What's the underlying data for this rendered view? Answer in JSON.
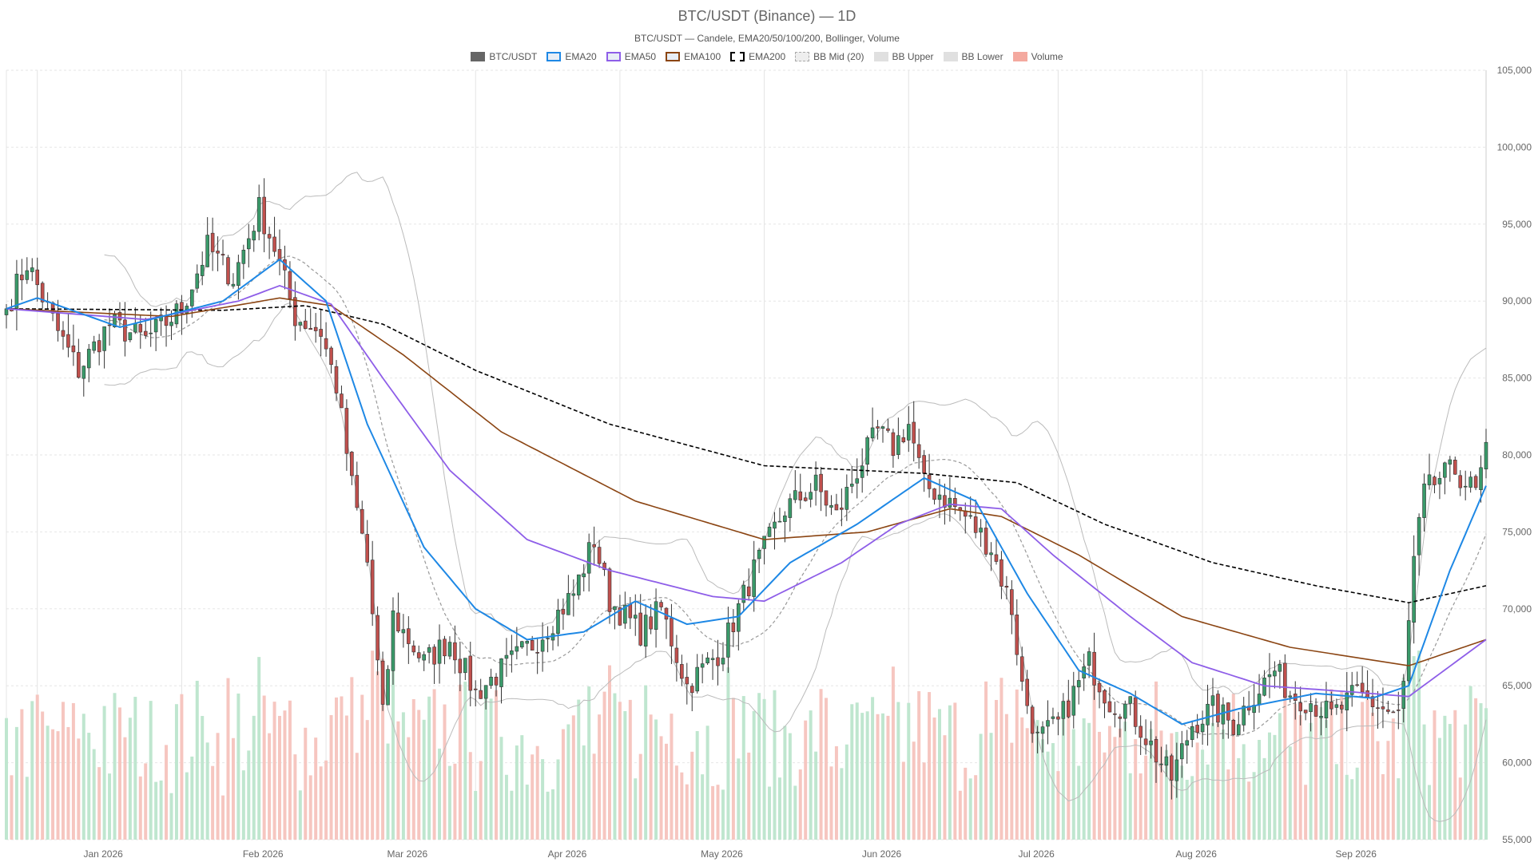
{
  "title": "BTC/USDT (Binance) — 1D",
  "subtitle": "BTC/USDT — Candele, EMA20/50/100/200, Bollinger, Volume",
  "legend": [
    {
      "label": "BTC/USDT",
      "color": "#666666",
      "style": "fill"
    },
    {
      "label": "EMA20",
      "color": "#1e88e5",
      "style": "line"
    },
    {
      "label": "EMA50",
      "color": "#8e5ee8",
      "style": "line"
    },
    {
      "label": "EMA100",
      "color": "#8b4513",
      "style": "line"
    },
    {
      "label": "EMA200",
      "color": "#000000",
      "style": "dashed"
    },
    {
      "label": "BB Mid (20)",
      "color": "#aaaaaa",
      "style": "dotted"
    },
    {
      "label": "BB Upper",
      "color": "#bbbbbb",
      "style": "fill"
    },
    {
      "label": "BB Lower",
      "color": "#bbbbbb",
      "style": "fill"
    },
    {
      "label": "Volume",
      "color": "#f4a99f",
      "style": "fill"
    }
  ],
  "colors": {
    "up": "#3a9a6a",
    "down": "#c0504d",
    "vol_up": "#bfe6cf",
    "vol_down": "#f6c6c0",
    "ema20": "#1e88e5",
    "ema50": "#8e5ee8",
    "ema100": "#8b4513",
    "ema200": "#000000",
    "bb": "#bbbbbb",
    "bb_mid": "#999999"
  },
  "chart_data": {
    "type": "candlestick",
    "x_axis": {
      "labels": [
        "Jan 2026",
        "Feb 2026",
        "Mar 2026",
        "Apr 2026",
        "May 2026",
        "Jun 2026",
        "Jul 2026",
        "Aug 2026",
        "Sep 2026"
      ],
      "start_date": "2025-12-14",
      "end_date": "2026-09-27"
    },
    "y_axis": {
      "min": 55000,
      "max": 105000,
      "ticks": [
        "55,000",
        "60,000",
        "65,000",
        "70,000",
        "75,000",
        "80,000",
        "85,000",
        "90,000",
        "95,000",
        "100,000",
        "105,000"
      ],
      "position": "right"
    },
    "grid": true,
    "price_keypoints": [
      {
        "date": "2025-12-14",
        "close": 89500
      },
      {
        "date": "2025-12-18",
        "close": 92500
      },
      {
        "date": "2025-12-24",
        "close": 88000
      },
      {
        "date": "2025-12-28",
        "close": 85500
      },
      {
        "date": "2026-01-03",
        "close": 88500
      },
      {
        "date": "2026-01-10",
        "close": 87500
      },
      {
        "date": "2026-01-17",
        "close": 89500
      },
      {
        "date": "2026-01-22",
        "close": 93500
      },
      {
        "date": "2026-01-27",
        "close": 91500
      },
      {
        "date": "2026-02-01",
        "close": 96000
      },
      {
        "date": "2026-02-04",
        "close": 93500
      },
      {
        "date": "2026-02-08",
        "close": 89000
      },
      {
        "date": "2026-02-13",
        "close": 88000
      },
      {
        "date": "2026-02-16",
        "close": 84500
      },
      {
        "date": "2026-02-19",
        "close": 78000
      },
      {
        "date": "2026-02-22",
        "close": 73000
      },
      {
        "date": "2026-02-25",
        "close": 63000
      },
      {
        "date": "2026-02-27",
        "close": 69500
      },
      {
        "date": "2026-03-05",
        "close": 66500
      },
      {
        "date": "2026-03-10",
        "close": 68000
      },
      {
        "date": "2026-03-15",
        "close": 64500
      },
      {
        "date": "2026-03-20",
        "close": 66000
      },
      {
        "date": "2026-03-27",
        "close": 68000
      },
      {
        "date": "2026-04-03",
        "close": 71000
      },
      {
        "date": "2026-04-07",
        "close": 74500
      },
      {
        "date": "2026-04-10",
        "close": 70500
      },
      {
        "date": "2026-04-16",
        "close": 68500
      },
      {
        "date": "2026-04-20",
        "close": 70000
      },
      {
        "date": "2026-04-25",
        "close": 65000
      },
      {
        "date": "2026-05-02",
        "close": 67500
      },
      {
        "date": "2026-05-08",
        "close": 72500
      },
      {
        "date": "2026-05-14",
        "close": 76500
      },
      {
        "date": "2026-05-20",
        "close": 78000
      },
      {
        "date": "2026-05-24",
        "close": 76000
      },
      {
        "date": "2026-05-28",
        "close": 79000
      },
      {
        "date": "2026-06-01",
        "close": 81500
      },
      {
        "date": "2026-06-04",
        "close": 80500
      },
      {
        "date": "2026-06-07",
        "close": 82000
      },
      {
        "date": "2026-06-10",
        "close": 78000
      },
      {
        "date": "2026-06-13",
        "close": 77500
      },
      {
        "date": "2026-06-18",
        "close": 76000
      },
      {
        "date": "2026-06-23",
        "close": 74000
      },
      {
        "date": "2026-06-27",
        "close": 70000
      },
      {
        "date": "2026-06-29",
        "close": 65000
      },
      {
        "date": "2026-07-02",
        "close": 61500
      },
      {
        "date": "2026-07-06",
        "close": 62500
      },
      {
        "date": "2026-07-12",
        "close": 66500
      },
      {
        "date": "2026-07-16",
        "close": 64000
      },
      {
        "date": "2026-07-20",
        "close": 63500
      },
      {
        "date": "2026-07-25",
        "close": 60500
      },
      {
        "date": "2026-07-28",
        "close": 59000
      },
      {
        "date": "2026-08-01",
        "close": 62500
      },
      {
        "date": "2026-08-05",
        "close": 63500
      },
      {
        "date": "2026-08-09",
        "close": 62500
      },
      {
        "date": "2026-08-13",
        "close": 64500
      },
      {
        "date": "2026-08-17",
        "close": 66000
      },
      {
        "date": "2026-08-20",
        "close": 64500
      },
      {
        "date": "2026-08-24",
        "close": 64000
      },
      {
        "date": "2026-08-28",
        "close": 63000
      },
      {
        "date": "2026-09-02",
        "close": 64500
      },
      {
        "date": "2026-09-07",
        "close": 63500
      },
      {
        "date": "2026-09-10",
        "close": 63000
      },
      {
        "date": "2026-09-11",
        "close": 65000
      },
      {
        "date": "2026-09-13",
        "close": 73000
      },
      {
        "date": "2026-09-15",
        "close": 77500
      },
      {
        "date": "2026-09-18",
        "close": 78500
      },
      {
        "date": "2026-09-21",
        "close": 79000
      },
      {
        "date": "2026-09-25",
        "close": 77500
      },
      {
        "date": "2026-09-27",
        "close": 80000
      }
    ],
    "ema20_keypoints": [
      {
        "date": "2025-12-14",
        "value": 89500
      },
      {
        "date": "2025-12-20",
        "value": 90200
      },
      {
        "date": "2026-01-05",
        "value": 88300
      },
      {
        "date": "2026-01-25",
        "value": 90000
      },
      {
        "date": "2026-02-05",
        "value": 92700
      },
      {
        "date": "2026-02-14",
        "value": 90000
      },
      {
        "date": "2026-02-22",
        "value": 82000
      },
      {
        "date": "2026-03-05",
        "value": 74000
      },
      {
        "date": "2026-03-15",
        "value": 70000
      },
      {
        "date": "2026-03-25",
        "value": 68000
      },
      {
        "date": "2026-04-05",
        "value": 68500
      },
      {
        "date": "2026-04-15",
        "value": 70500
      },
      {
        "date": "2026-04-25",
        "value": 69000
      },
      {
        "date": "2026-05-05",
        "value": 69500
      },
      {
        "date": "2026-05-15",
        "value": 73000
      },
      {
        "date": "2026-05-28",
        "value": 75500
      },
      {
        "date": "2026-06-10",
        "value": 78500
      },
      {
        "date": "2026-06-20",
        "value": 77000
      },
      {
        "date": "2026-06-30",
        "value": 71000
      },
      {
        "date": "2026-07-10",
        "value": 66000
      },
      {
        "date": "2026-07-20",
        "value": 64500
      },
      {
        "date": "2026-07-30",
        "value": 62500
      },
      {
        "date": "2026-08-10",
        "value": 63500
      },
      {
        "date": "2026-08-25",
        "value": 64500
      },
      {
        "date": "2026-09-05",
        "value": 64200
      },
      {
        "date": "2026-09-12",
        "value": 65000
      },
      {
        "date": "2026-09-20",
        "value": 72500
      },
      {
        "date": "2026-09-27",
        "value": 78000
      }
    ],
    "ema50_keypoints": [
      {
        "date": "2025-12-14",
        "value": 89500
      },
      {
        "date": "2026-01-10",
        "value": 88800
      },
      {
        "date": "2026-01-28",
        "value": 90000
      },
      {
        "date": "2026-02-05",
        "value": 91000
      },
      {
        "date": "2026-02-15",
        "value": 89800
      },
      {
        "date": "2026-02-25",
        "value": 85000
      },
      {
        "date": "2026-03-10",
        "value": 79000
      },
      {
        "date": "2026-03-25",
        "value": 74500
      },
      {
        "date": "2026-04-10",
        "value": 72500
      },
      {
        "date": "2026-04-30",
        "value": 70800
      },
      {
        "date": "2026-05-10",
        "value": 70500
      },
      {
        "date": "2026-05-25",
        "value": 73000
      },
      {
        "date": "2026-06-05",
        "value": 75500
      },
      {
        "date": "2026-06-15",
        "value": 76800
      },
      {
        "date": "2026-06-25",
        "value": 76500
      },
      {
        "date": "2026-07-05",
        "value": 73500
      },
      {
        "date": "2026-07-20",
        "value": 69500
      },
      {
        "date": "2026-08-01",
        "value": 66500
      },
      {
        "date": "2026-08-15",
        "value": 65000
      },
      {
        "date": "2026-09-01",
        "value": 64600
      },
      {
        "date": "2026-09-12",
        "value": 64300
      },
      {
        "date": "2026-09-27",
        "value": 68000
      }
    ],
    "ema100_keypoints": [
      {
        "date": "2025-12-14",
        "value": 89500
      },
      {
        "date": "2026-01-15",
        "value": 89000
      },
      {
        "date": "2026-02-05",
        "value": 90200
      },
      {
        "date": "2026-02-15",
        "value": 89700
      },
      {
        "date": "2026-03-01",
        "value": 86500
      },
      {
        "date": "2026-03-20",
        "value": 81500
      },
      {
        "date": "2026-04-15",
        "value": 77000
      },
      {
        "date": "2026-05-10",
        "value": 74500
      },
      {
        "date": "2026-05-30",
        "value": 75000
      },
      {
        "date": "2026-06-15",
        "value": 76500
      },
      {
        "date": "2026-06-25",
        "value": 76000
      },
      {
        "date": "2026-07-10",
        "value": 73500
      },
      {
        "date": "2026-07-30",
        "value": 69500
      },
      {
        "date": "2026-08-20",
        "value": 67500
      },
      {
        "date": "2026-09-12",
        "value": 66300
      },
      {
        "date": "2026-09-27",
        "value": 68000
      }
    ],
    "ema200_keypoints": [
      {
        "date": "2025-12-14",
        "value": 89500
      },
      {
        "date": "2026-01-25",
        "value": 89400
      },
      {
        "date": "2026-02-10",
        "value": 89700
      },
      {
        "date": "2026-02-25",
        "value": 88500
      },
      {
        "date": "2026-03-15",
        "value": 85500
      },
      {
        "date": "2026-04-10",
        "value": 82000
      },
      {
        "date": "2026-05-10",
        "value": 79300
      },
      {
        "date": "2026-06-10",
        "value": 78800
      },
      {
        "date": "2026-06-28",
        "value": 78200
      },
      {
        "date": "2026-07-15",
        "value": 75500
      },
      {
        "date": "2026-08-05",
        "value": 73000
      },
      {
        "date": "2026-08-25",
        "value": 71500
      },
      {
        "date": "2026-09-12",
        "value": 70400
      },
      {
        "date": "2026-09-27",
        "value": 71500
      }
    ]
  },
  "axis_labels": {
    "x": [
      "Jan 2026",
      "Feb 2026",
      "Mar 2026",
      "Apr 2026",
      "May 2026",
      "Jun 2026",
      "Jul 2026",
      "Aug 2026",
      "Sep 2026"
    ],
    "y": [
      "55,000",
      "60,000",
      "65,000",
      "70,000",
      "75,000",
      "80,000",
      "85,000",
      "90,000",
      "95,000",
      "100,000",
      "105,000"
    ]
  }
}
